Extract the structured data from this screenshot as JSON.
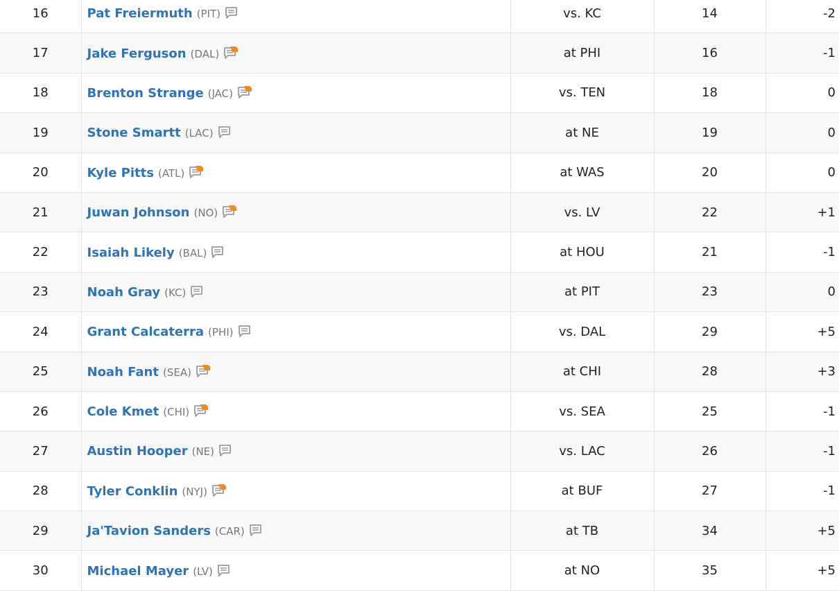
{
  "rankings": {
    "rows": [
      {
        "rank": "16",
        "player": "Pat Freiermuth",
        "team": "(PIT)",
        "note": "note-icon",
        "opponent": "vs. KC",
        "proj": "14",
        "change": "-2"
      },
      {
        "rank": "17",
        "player": "Jake Ferguson",
        "team": "(DAL)",
        "note": "note-new-icon",
        "opponent": "at PHI",
        "proj": "16",
        "change": "-1"
      },
      {
        "rank": "18",
        "player": "Brenton Strange",
        "team": "(JAC)",
        "note": "note-new-icon",
        "opponent": "vs. TEN",
        "proj": "18",
        "change": "0"
      },
      {
        "rank": "19",
        "player": "Stone Smartt",
        "team": "(LAC)",
        "note": "note-icon",
        "opponent": "at NE",
        "proj": "19",
        "change": "0"
      },
      {
        "rank": "20",
        "player": "Kyle Pitts",
        "team": "(ATL)",
        "note": "note-new-icon",
        "opponent": "at WAS",
        "proj": "20",
        "change": "0"
      },
      {
        "rank": "21",
        "player": "Juwan Johnson",
        "team": "(NO)",
        "note": "note-new-icon",
        "opponent": "vs. LV",
        "proj": "22",
        "change": "+1"
      },
      {
        "rank": "22",
        "player": "Isaiah Likely",
        "team": "(BAL)",
        "note": "note-icon",
        "opponent": "at HOU",
        "proj": "21",
        "change": "-1"
      },
      {
        "rank": "23",
        "player": "Noah Gray",
        "team": "(KC)",
        "note": "note-icon",
        "opponent": "at PIT",
        "proj": "23",
        "change": "0"
      },
      {
        "rank": "24",
        "player": "Grant Calcaterra",
        "team": "(PHI)",
        "note": "note-icon",
        "opponent": "vs. DAL",
        "proj": "29",
        "change": "+5"
      },
      {
        "rank": "25",
        "player": "Noah Fant",
        "team": "(SEA)",
        "note": "note-new-icon",
        "opponent": "at CHI",
        "proj": "28",
        "change": "+3"
      },
      {
        "rank": "26",
        "player": "Cole Kmet",
        "team": "(CHI)",
        "note": "note-new-icon",
        "opponent": "vs. SEA",
        "proj": "25",
        "change": "-1"
      },
      {
        "rank": "27",
        "player": "Austin Hooper",
        "team": "(NE)",
        "note": "note-icon",
        "opponent": "vs. LAC",
        "proj": "26",
        "change": "-1"
      },
      {
        "rank": "28",
        "player": "Tyler Conklin",
        "team": "(NYJ)",
        "note": "note-new-icon",
        "opponent": "at BUF",
        "proj": "27",
        "change": "-1"
      },
      {
        "rank": "29",
        "player": "Ja'Tavion Sanders",
        "team": "(CAR)",
        "note": "note-icon",
        "opponent": "at TB",
        "proj": "34",
        "change": "+5"
      },
      {
        "rank": "30",
        "player": "Michael Mayer",
        "team": "(LV)",
        "note": "note-icon",
        "opponent": "at NO",
        "proj": "35",
        "change": "+5"
      }
    ]
  },
  "colors": {
    "link": "#2e73b8",
    "team": "#777777",
    "icon_gray": "#9a9a9a",
    "icon_new": "#f08a24",
    "row_alt": "#f8f8f8",
    "border": "#e4e4e4"
  }
}
